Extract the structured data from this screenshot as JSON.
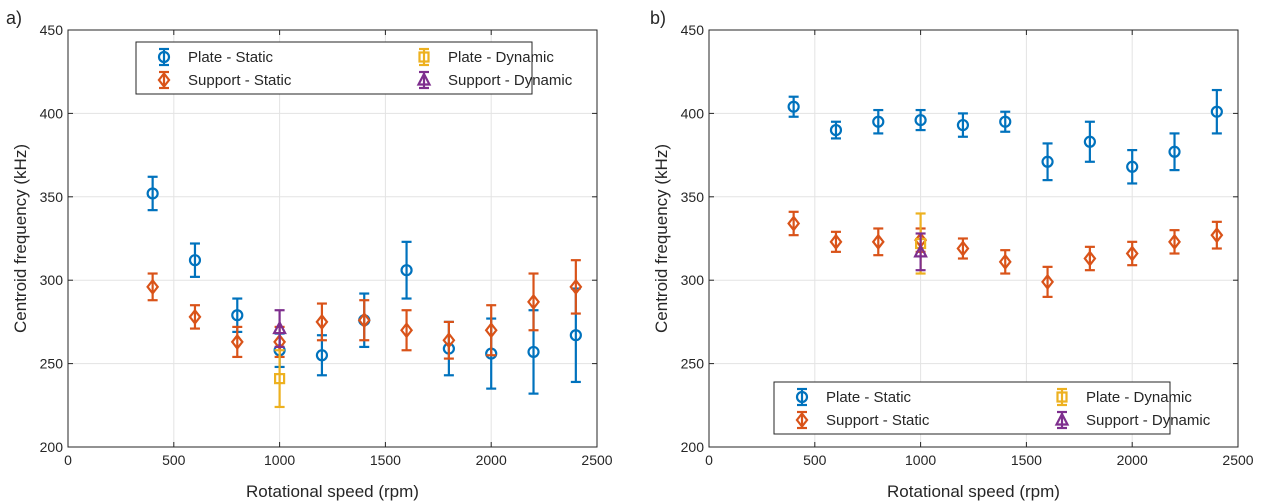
{
  "chart_data": [
    {
      "type": "scatter",
      "panel_label": "a)",
      "xlabel": "Rotational speed (rpm)",
      "ylabel": "Centroid frequency (kHz)",
      "xlim": [
        0,
        2500
      ],
      "ylim": [
        200,
        450
      ],
      "xticks": [
        0,
        500,
        1000,
        1500,
        2000,
        2500
      ],
      "yticks": [
        200,
        250,
        300,
        350,
        400,
        450
      ],
      "grid": true,
      "legend_position": "top-center",
      "series": [
        {
          "name": "Plate - Static",
          "marker": "circle",
          "color": "#0072BD",
          "x": [
            400,
            600,
            800,
            1000,
            1200,
            1400,
            1600,
            1800,
            2000,
            2200,
            2400
          ],
          "y": [
            352,
            312,
            279,
            258,
            255,
            276,
            306,
            259,
            256,
            257,
            267
          ],
          "err": [
            10,
            10,
            10,
            10,
            12,
            16,
            17,
            16,
            21,
            25,
            28
          ]
        },
        {
          "name": "Support - Static",
          "marker": "diamond",
          "color": "#D95319",
          "x": [
            400,
            600,
            800,
            1000,
            1200,
            1400,
            1600,
            1800,
            2000,
            2200,
            2400
          ],
          "y": [
            296,
            278,
            263,
            263,
            275,
            276,
            270,
            264,
            270,
            287,
            296
          ],
          "err": [
            8,
            7,
            9,
            9,
            11,
            12,
            12,
            11,
            15,
            17,
            16
          ]
        },
        {
          "name": "Plate - Dynamic",
          "marker": "square",
          "color": "#EDB120",
          "x": [
            1000
          ],
          "y": [
            241
          ],
          "err": [
            17
          ]
        },
        {
          "name": "Support - Dynamic",
          "marker": "triangle",
          "color": "#7E2F8E",
          "x": [
            1000
          ],
          "y": [
            271
          ],
          "err": [
            11
          ]
        }
      ]
    },
    {
      "type": "scatter",
      "panel_label": "b)",
      "xlabel": "Rotational speed (rpm)",
      "ylabel": "Centroid frequency (kHz)",
      "xlim": [
        0,
        2500
      ],
      "ylim": [
        200,
        450
      ],
      "xticks": [
        0,
        500,
        1000,
        1500,
        2000,
        2500
      ],
      "yticks": [
        200,
        250,
        300,
        350,
        400,
        450
      ],
      "grid": true,
      "legend_position": "bottom-center",
      "series": [
        {
          "name": "Plate - Static",
          "marker": "circle",
          "color": "#0072BD",
          "x": [
            400,
            600,
            800,
            1000,
            1200,
            1400,
            1600,
            1800,
            2000,
            2200,
            2400
          ],
          "y": [
            404,
            390,
            395,
            396,
            393,
            395,
            371,
            383,
            368,
            377,
            401
          ],
          "err": [
            6,
            5,
            7,
            6,
            7,
            6,
            11,
            12,
            10,
            11,
            13
          ]
        },
        {
          "name": "Support - Static",
          "marker": "diamond",
          "color": "#D95319",
          "x": [
            400,
            600,
            800,
            1000,
            1200,
            1400,
            1600,
            1800,
            2000,
            2200,
            2400
          ],
          "y": [
            334,
            323,
            323,
            324,
            319,
            311,
            299,
            313,
            316,
            323,
            327
          ],
          "err": [
            7,
            6,
            8,
            7,
            6,
            7,
            9,
            7,
            7,
            7,
            8
          ]
        },
        {
          "name": "Plate - Dynamic",
          "marker": "square",
          "color": "#EDB120",
          "x": [
            1000
          ],
          "y": [
            322
          ],
          "err": [
            18
          ]
        },
        {
          "name": "Support - Dynamic",
          "marker": "triangle",
          "color": "#7E2F8E",
          "x": [
            1000
          ],
          "y": [
            317
          ],
          "err": [
            11
          ]
        }
      ]
    }
  ]
}
